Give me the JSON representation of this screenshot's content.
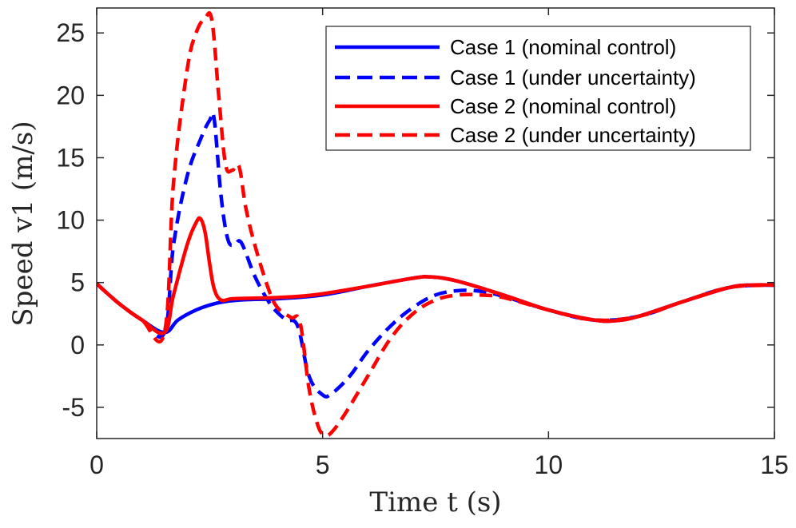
{
  "chart_data": {
    "type": "line",
    "title": "",
    "xlabel": "Time t (s)",
    "ylabel": "Speed v1 (m/s)",
    "xlim": [
      0,
      15
    ],
    "ylim": [
      -7.5,
      27
    ],
    "xticks": [
      0,
      5,
      10,
      15
    ],
    "xtick_labels": [
      "0",
      "5",
      "10",
      "15"
    ],
    "yticks": [
      -5,
      0,
      5,
      10,
      15,
      20,
      25
    ],
    "ytick_labels": [
      "-5",
      "0",
      "5",
      "10",
      "15",
      "20",
      "25"
    ],
    "grid": false,
    "legend_position": "top-right",
    "series": [
      {
        "name": "Case 1 (nominal control)",
        "color": "#0000ff",
        "style": "solid",
        "x": [
          0,
          0.5,
          1.0,
          1.5,
          1.8,
          2.2,
          2.6,
          3.0,
          3.5,
          4.0,
          5.0,
          6.0,
          7.0,
          7.4,
          8.0,
          9.0,
          10.0,
          11.0,
          11.5,
          12.0,
          13.0,
          14.0,
          14.5,
          15.0
        ],
        "y": [
          4.9,
          3.3,
          2.0,
          1.0,
          2.0,
          2.8,
          3.3,
          3.55,
          3.65,
          3.7,
          4.0,
          4.7,
          5.35,
          5.45,
          5.1,
          4.0,
          2.8,
          2.0,
          1.95,
          2.3,
          3.5,
          4.6,
          4.8,
          4.8
        ]
      },
      {
        "name": "Case 1 (under uncertainty)",
        "color": "#0000ff",
        "style": "dashed",
        "x": [
          0,
          0.5,
          1.0,
          1.5,
          1.7,
          2.0,
          2.3,
          2.5,
          2.6,
          2.75,
          2.9,
          3.05,
          3.2,
          3.5,
          3.8,
          4.0,
          4.2,
          4.45,
          4.7,
          5.0,
          5.2,
          5.6,
          6.0,
          6.5,
          7.0,
          7.5,
          8.0,
          8.5,
          9.0,
          10.0,
          11.0,
          12.0,
          13.0,
          14.0,
          15.0
        ],
        "y": [
          4.9,
          3.3,
          2.0,
          1.0,
          8.0,
          13.5,
          16.5,
          18.0,
          18.1,
          12.0,
          8.5,
          8.0,
          8.2,
          5.5,
          3.5,
          2.6,
          2.0,
          1.5,
          -2.5,
          -4.0,
          -3.9,
          -2.5,
          -0.5,
          1.5,
          3.0,
          4.0,
          4.35,
          4.3,
          3.9,
          2.8,
          2.0,
          2.3,
          3.5,
          4.6,
          4.8
        ]
      },
      {
        "name": "Case 2 (nominal control)",
        "color": "#ff0000",
        "style": "solid",
        "x": [
          0,
          0.5,
          1.0,
          1.5,
          1.7,
          2.0,
          2.2,
          2.3,
          2.4,
          2.5,
          2.6,
          2.75,
          3.0,
          3.5,
          4.0,
          4.5,
          5.0,
          6.0,
          7.0,
          7.4,
          8.0,
          9.0,
          10.0,
          11.0,
          11.5,
          12.0,
          13.0,
          14.0,
          14.5,
          15.0
        ],
        "y": [
          4.9,
          3.3,
          2.0,
          1.0,
          4.0,
          8.0,
          9.8,
          10.1,
          9.0,
          6.5,
          4.5,
          3.6,
          3.7,
          3.75,
          3.8,
          3.9,
          4.1,
          4.7,
          5.35,
          5.45,
          5.1,
          4.0,
          2.8,
          2.0,
          1.95,
          2.3,
          3.5,
          4.6,
          4.8,
          4.8
        ]
      },
      {
        "name": "Case 2 (under uncertainty)",
        "color": "#ff0000",
        "style": "dashed",
        "x": [
          0,
          0.5,
          1.0,
          1.5,
          1.7,
          2.0,
          2.2,
          2.4,
          2.55,
          2.7,
          2.85,
          3.0,
          3.15,
          3.3,
          3.5,
          3.8,
          4.0,
          4.3,
          4.5,
          4.7,
          4.9,
          5.05,
          5.2,
          5.5,
          6.0,
          6.5,
          7.0,
          7.5,
          8.0,
          8.5,
          9.0,
          10.0,
          11.0,
          12.0,
          13.0,
          14.0,
          15.0
        ],
        "y": [
          4.9,
          3.3,
          2.0,
          1.0,
          13.0,
          22.0,
          25.0,
          26.2,
          26.0,
          20.0,
          14.5,
          14.0,
          14.3,
          11.0,
          8.0,
          4.5,
          3.0,
          2.2,
          1.8,
          -3.5,
          -6.5,
          -7.2,
          -7.0,
          -5.5,
          -2.5,
          0.5,
          2.5,
          3.6,
          4.0,
          4.0,
          3.8,
          2.8,
          2.0,
          2.3,
          3.5,
          4.6,
          4.8
        ]
      }
    ]
  }
}
